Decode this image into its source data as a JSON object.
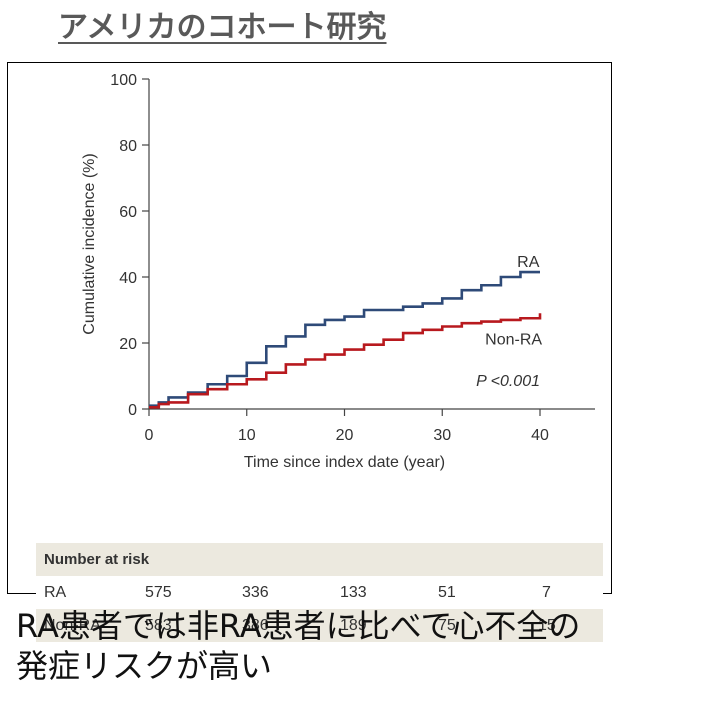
{
  "heading": "アメリカのコホート研究",
  "caption_line1": "RA患者では非RA患者に比べて心不全の",
  "caption_line2": "発症リスクが高い",
  "colors": {
    "ra": "#2e4a78",
    "non_ra": "#b8191e",
    "table_band": "#ece9df"
  },
  "chart_data": {
    "type": "line",
    "xlabel": "Time since index date (year)",
    "ylabel": "Cumulative incidence (%)",
    "xlim": [
      0,
      40
    ],
    "ylim": [
      0,
      100
    ],
    "xticks": [
      0,
      10,
      20,
      30,
      40
    ],
    "yticks": [
      0,
      20,
      40,
      60,
      80,
      100
    ],
    "annotation": "P <0.001",
    "series": [
      {
        "name": "RA",
        "x": [
          0,
          1,
          2,
          4,
          6,
          8,
          10,
          12,
          14,
          16,
          18,
          20,
          22,
          26,
          28,
          30,
          32,
          34,
          36,
          38,
          40
        ],
        "y": [
          1,
          2,
          3.5,
          5,
          7.5,
          10,
          14,
          19,
          22,
          25.5,
          27,
          28,
          30,
          31,
          32,
          33.5,
          36,
          37.5,
          40,
          41.5,
          41.5
        ]
      },
      {
        "name": "Non-RA",
        "x": [
          0,
          1,
          2,
          4,
          6,
          8,
          10,
          12,
          14,
          16,
          18,
          20,
          22,
          24,
          26,
          28,
          30,
          32,
          34,
          36,
          38,
          40
        ],
        "y": [
          0.5,
          1.5,
          2,
          4.5,
          6,
          7.5,
          9,
          11,
          13.5,
          15,
          16.5,
          18,
          19.5,
          21,
          23,
          24,
          25,
          26,
          26.5,
          27,
          27.5,
          29
        ]
      }
    ]
  },
  "risk_table": {
    "title": "Number at risk",
    "rows": [
      {
        "label": "RA",
        "values": [
          "575",
          "336",
          "133",
          "51",
          "7"
        ]
      },
      {
        "label": "Non-RA",
        "values": [
          "583",
          "386",
          "189",
          "75",
          "15"
        ]
      }
    ]
  }
}
